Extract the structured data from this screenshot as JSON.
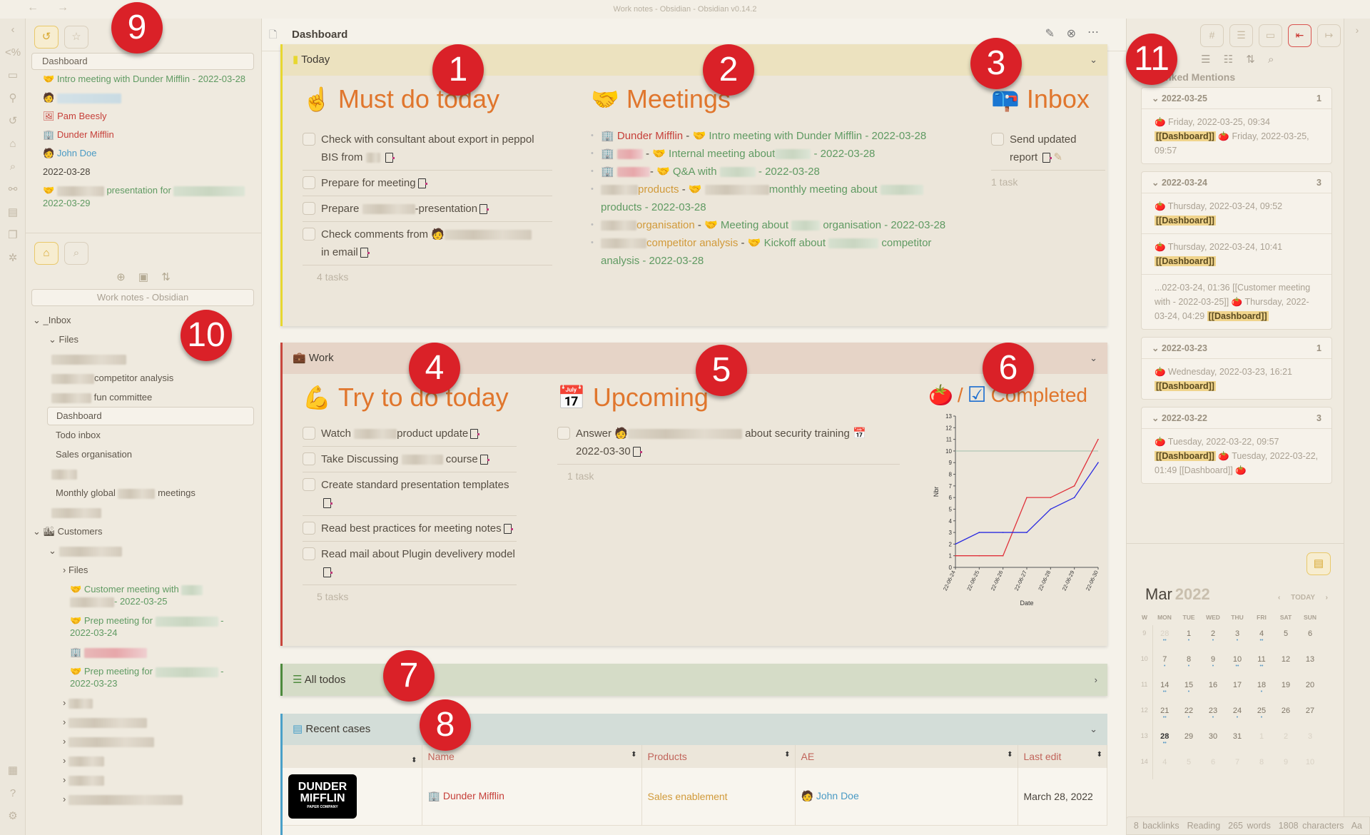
{
  "window": {
    "title": "Work notes - Obsidian - Obsidian v0.14.2",
    "back": "←",
    "forward": "→"
  },
  "badges": [
    "1",
    "2",
    "3",
    "4",
    "5",
    "6",
    "7",
    "8",
    "9",
    "10",
    "11"
  ],
  "left_sidebar": {
    "recent_search": "Dashboard",
    "recent": [
      {
        "icon": "🤝",
        "text": "Intro meeting with Dunder Mifflin - 2022-03-28",
        "color": "green"
      },
      {
        "icon": "🧑",
        "text": "",
        "color": "blue"
      },
      {
        "icon": "🖼",
        "text": "Pam Beesly",
        "color": "red"
      },
      {
        "icon": "🏢",
        "text": "Dunder Mifflin",
        "color": "red"
      },
      {
        "icon": "🧑",
        "text": "John Doe",
        "color": "blue"
      },
      {
        "icon": "",
        "text": "2022-03-28",
        "color": "plain"
      },
      {
        "icon": "🤝",
        "text": "presentation for",
        "color": "green"
      },
      {
        "icon": "",
        "text": "2022-03-29",
        "color": "green"
      }
    ],
    "vault_name": "Work notes - Obsidian",
    "tree": {
      "inbox": "_Inbox",
      "files": "Files",
      "competitor": "competitor analysis",
      "fun": "fun committee",
      "dashboard": "Dashboard",
      "todo": "Todo inbox",
      "sales": "Sales organisation",
      "monthly": "Monthly global",
      "monthly_suffix": "meetings",
      "customers": "Customers",
      "cust_files": "Files",
      "cust_meeting": "Customer meeting with",
      "cust_meeting_date": "- 2022-03-25",
      "prep1": "Prep meeting for",
      "prep1_date": "2022-03-24",
      "prep2": "Prep meeting for",
      "prep2_date": "2022-03-23",
      "dash": "-"
    }
  },
  "main": {
    "title": "Dashboard",
    "today": {
      "label": "Today",
      "must": {
        "title": "Must do today",
        "icon": "☝",
        "tasks": [
          "Check with consultant about export in peppol BIS from",
          "Prepare for meeting",
          "Prepare",
          "-presentation",
          "Check comments from",
          "in email"
        ],
        "count": "4 tasks"
      },
      "meetings": {
        "title": "Meetings",
        "icon": "🤝",
        "items": [
          {
            "a": "Dunder Mifflin",
            "sep": " - ",
            "b": "Intro meeting with Dunder Mifflin - 2022-03-28"
          },
          {
            "b": "Internal meeting about",
            "c": "- 2022-03-28"
          },
          {
            "b": "Q&A with",
            "c": "- 2022-03-28"
          },
          {
            "a": "products",
            "b": "monthly meeting about",
            "c": "products - 2022-03-28"
          },
          {
            "a": "organisation",
            "b": "Meeting about",
            "c": "organisation - 2022-03-28"
          },
          {
            "a": "competitor analysis",
            "b": "Kickoff about",
            "c": "competitor analysis - 2022-03-28"
          }
        ]
      },
      "inbox": {
        "title": "Inbox",
        "icon": "📪",
        "task": "Send updated report",
        "count": "1 task"
      }
    },
    "work": {
      "label": "Work",
      "try": {
        "title": "Try to do today",
        "icon": "💪",
        "tasks": [
          "Watch",
          "product update",
          "Take Discussing",
          "course",
          "Create standard presentation templates",
          "Read best practices for meeting notes",
          "Read mail about Plugin develivery model"
        ],
        "count": "5 tasks"
      },
      "upcoming": {
        "title": "Upcoming",
        "icon": "📅",
        "task_a": "Answer",
        "task_b": "about security training",
        "task_date": "2022-03-30",
        "count": "1 task"
      },
      "completed": {
        "title": "Completed",
        "sep": "/",
        "icon_a": "🍅",
        "icon_b": "☑"
      }
    },
    "all_todos": {
      "label": "All todos"
    },
    "recent_cases": {
      "label": "Recent cases",
      "columns": [
        "",
        "Name",
        "Products",
        "AE",
        "Last edit"
      ],
      "rows": [
        {
          "logo": "DUNDER MIFFLIN",
          "logo_sub": "PAPER COMPANY",
          "name": "Dunder Mifflin",
          "products": "Sales enablement",
          "ae": "John Doe",
          "last_edit": "March 28, 2022"
        }
      ]
    }
  },
  "chart_data": {
    "type": "line",
    "xlabel": "Date",
    "ylabel": "Nbr",
    "x": [
      "22-06-24",
      "22-06-25",
      "22-06-26",
      "22-06-27",
      "22-06-28",
      "22-06-29",
      "22-06-30"
    ],
    "ylim": [
      0,
      13
    ],
    "yticks": [
      0,
      1,
      2,
      3,
      4,
      5,
      6,
      7,
      8,
      9,
      10,
      11,
      12,
      13
    ],
    "series": [
      {
        "color": "#e0313a",
        "values": [
          1,
          1,
          1,
          6,
          6,
          7,
          11
        ]
      },
      {
        "color": "#2a2ae0",
        "values": [
          2,
          3,
          3,
          3,
          5,
          6,
          9
        ]
      }
    ],
    "reference_line": {
      "value": 10,
      "color": "#a9c2b0"
    },
    "grid": false
  },
  "right_sidebar": {
    "mentions_title": "6  Linked Mentions",
    "groups": [
      {
        "date": "2022-03-25",
        "count": "1",
        "items": [
          [
            "🍅 Friday, 2022-03-25, 09:34 ",
            "[[Dashboard]]",
            " 🍅 Friday, 2022-03-25, 09:57"
          ]
        ]
      },
      {
        "date": "2022-03-24",
        "count": "3",
        "items": [
          [
            "🍅 Thursday, 2022-03-24, 09:52 ",
            "[[Dashboard]]",
            ""
          ],
          [
            "🍅 Thursday, 2022-03-24, 10:41 ",
            "[[Dashboard]]",
            ""
          ],
          [
            "...022-03-24, 01:36 [[Customer meeting with       - 2022-03-25]] 🍅 Thursday, 2022-03-24, 04:29 ",
            "[[Dashboard]]",
            ""
          ]
        ]
      },
      {
        "date": "2022-03-23",
        "count": "1",
        "items": [
          [
            "🍅 Wednesday, 2022-03-23, 16:21 ",
            "[[Dashboard]]",
            ""
          ]
        ]
      },
      {
        "date": "2022-03-22",
        "count": "3",
        "items": [
          [
            "🍅 Tuesday, 2022-03-22, 09:57 ",
            "[[Dashboard]]",
            " 🍅 Tuesday, 2022-03-22, 01:49 [[Dashboard]] 🍅"
          ]
        ]
      }
    ],
    "calendar": {
      "month": "Mar",
      "year": "2022",
      "today": "TODAY",
      "headers": [
        "W",
        "MON",
        "TUE",
        "WED",
        "THU",
        "FRI",
        "SAT",
        "SUN"
      ],
      "weeks": [
        {
          "w": "9",
          "days": [
            "28",
            "1",
            "2",
            "3",
            "4",
            "5",
            "6"
          ],
          "dim": [
            0
          ],
          "dots": [
            "••",
            "•",
            "•",
            "•",
            "••",
            "",
            ""
          ]
        },
        {
          "w": "10",
          "days": [
            "7",
            "8",
            "9",
            "10",
            "11",
            "12",
            "13"
          ],
          "dim": [],
          "dots": [
            "•",
            "•",
            "•",
            "••",
            "••",
            "",
            ""
          ]
        },
        {
          "w": "11",
          "days": [
            "14",
            "15",
            "16",
            "17",
            "18",
            "19",
            "20"
          ],
          "dim": [],
          "dots": [
            "••",
            "•",
            "",
            "",
            "•",
            "",
            ""
          ]
        },
        {
          "w": "12",
          "days": [
            "21",
            "22",
            "23",
            "24",
            "25",
            "26",
            "27"
          ],
          "dim": [],
          "dots": [
            "••",
            "•",
            "•",
            "•",
            "•",
            "",
            ""
          ]
        },
        {
          "w": "13",
          "days": [
            "28",
            "29",
            "30",
            "31",
            "1",
            "2",
            "3"
          ],
          "dim": [
            4,
            5,
            6
          ],
          "dots": [
            "••",
            "",
            "",
            "",
            "",
            "",
            ""
          ]
        },
        {
          "w": "14",
          "days": [
            "4",
            "5",
            "6",
            "7",
            "8",
            "9",
            "10"
          ],
          "dim": [
            0,
            1,
            2,
            3,
            4,
            5,
            6
          ],
          "dots": [
            "",
            "",
            "",
            "",
            "",
            "",
            ""
          ]
        }
      ],
      "current_day": "28"
    }
  },
  "status_bar": {
    "backlinks": "8 backlinks",
    "mode": "Reading",
    "words": "265 words",
    "chars": "1808 characters",
    "font": "Aa"
  }
}
